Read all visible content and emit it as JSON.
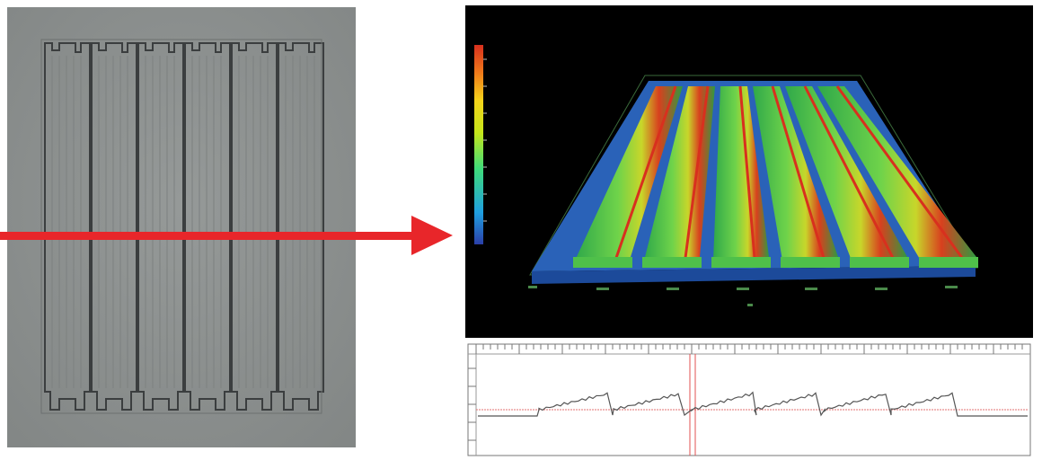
{
  "figure": {
    "micrograph": {
      "channel_count": 6,
      "background_color": "#8e9291",
      "line_color": "#3b3e3f"
    },
    "arrow": {
      "color": "#e8262a",
      "direction": "right"
    },
    "height_map_3d": {
      "background_color": "#000000",
      "colorbar_colors": [
        "#2b3fa8",
        "#1f9fe0",
        "#3fdc7a",
        "#c6e61a",
        "#f5d41a",
        "#f07a1a",
        "#d8301e"
      ],
      "ridge_count": 6
    },
    "profile_plot": {
      "trace_color": "#555555",
      "reference_line_color": "#e07070",
      "cursor_color": "#e05050",
      "background_color": "#ffffff"
    }
  }
}
